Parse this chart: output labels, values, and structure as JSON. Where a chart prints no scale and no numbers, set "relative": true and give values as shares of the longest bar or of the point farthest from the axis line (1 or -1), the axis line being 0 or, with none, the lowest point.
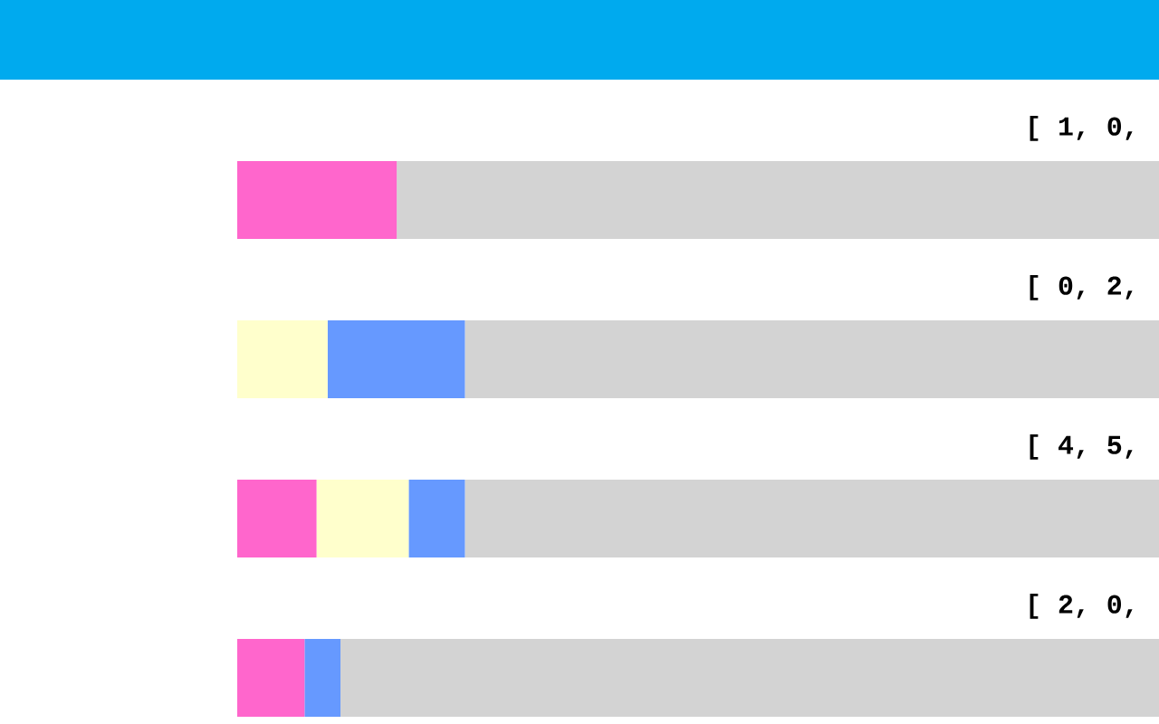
{
  "chart_data": {
    "type": "bar",
    "orientation": "horizontal",
    "stacked": true,
    "relative": true,
    "categories": [
      null,
      null,
      null,
      null
    ],
    "series": [
      {
        "color": "#ff66cc",
        "values": [
          0.173,
          null,
          0.086,
          0.073
        ]
      },
      {
        "color": "#ffffcc",
        "values": [
          null,
          0.098,
          0.1,
          null
        ]
      },
      {
        "color": "#6699ff",
        "values": [
          null,
          0.149,
          0.061,
          0.039
        ]
      },
      {
        "color": "#d3d3d3",
        "values": [
          0.827,
          0.753,
          0.753,
          0.888
        ]
      }
    ],
    "annotations": [
      "[ 1, 0,",
      "[ 0, 2,",
      "[ 4, 5,",
      "[ 2, 0,"
    ]
  }
}
